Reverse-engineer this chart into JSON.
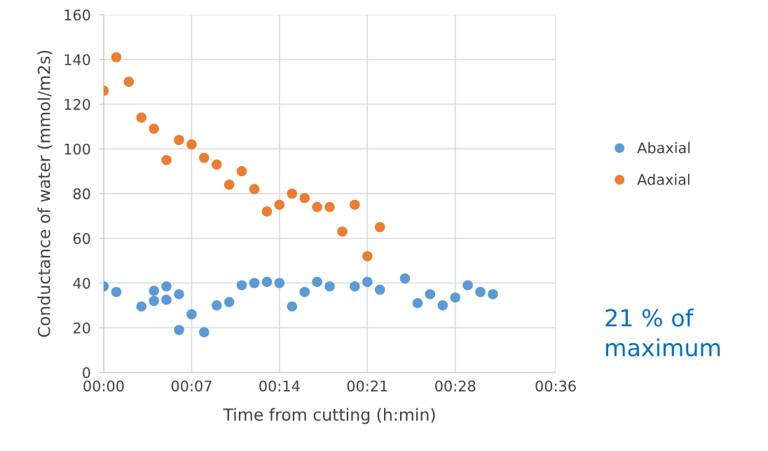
{
  "chart_data": {
    "type": "scatter",
    "xlabel": "Time from cutting (h:min)",
    "ylabel": "Conductance of water (mmol/m2s)",
    "xlim": [
      0,
      0.6
    ],
    "xticks": [
      {
        "value": 0,
        "label": "00:00"
      },
      {
        "value": 0.1167,
        "label": "00:07"
      },
      {
        "value": 0.2333,
        "label": "00:14"
      },
      {
        "value": 0.35,
        "label": "00:21"
      },
      {
        "value": 0.4667,
        "label": "00:28"
      },
      {
        "value": 0.6,
        "label": "00:36"
      }
    ],
    "ylim": [
      0,
      160
    ],
    "yticks": [
      0,
      20,
      40,
      60,
      80,
      100,
      120,
      140,
      160
    ],
    "grid": true,
    "legend": "right",
    "marker": "circle",
    "series": [
      {
        "name": "Abaxial",
        "color": "#5b9bd5",
        "x": [
          0,
          0.0167,
          0.05,
          0.0667,
          0.0667,
          0.0833,
          0.0833,
          0.1,
          0.1,
          0.1167,
          0.1333,
          0.15,
          0.1667,
          0.1833,
          0.2,
          0.2167,
          0.2333,
          0.25,
          0.2667,
          0.2833,
          0.3,
          0.3333,
          0.35,
          0.3667,
          0.4,
          0.4167,
          0.4333,
          0.45,
          0.4667,
          0.4833,
          0.5,
          0.5167
        ],
        "values": [
          38.5,
          36,
          29.5,
          36.5,
          32,
          38.5,
          32.5,
          35,
          19,
          26,
          18,
          30,
          31.5,
          39,
          40,
          40.5,
          40,
          29.5,
          36,
          40.5,
          38.5,
          38.5,
          40.5,
          37,
          42,
          31,
          35,
          30,
          33.5,
          39,
          36,
          35
        ]
      },
      {
        "name": "Adaxial",
        "color": "#ed7d31",
        "x": [
          0,
          0.0167,
          0.0333,
          0.05,
          0.0667,
          0.0833,
          0.1,
          0.1167,
          0.1333,
          0.15,
          0.1667,
          0.1833,
          0.2,
          0.2167,
          0.2333,
          0.25,
          0.2667,
          0.2833,
          0.3,
          0.3167,
          0.3333,
          0.35,
          0.3667
        ],
        "values": [
          126,
          141,
          130,
          114,
          109,
          95,
          104,
          102,
          96,
          93,
          84,
          90,
          82,
          72,
          75,
          80,
          78,
          74,
          74,
          63,
          75,
          52,
          65
        ]
      }
    ],
    "annotations": [
      "21 % of maximum"
    ]
  }
}
